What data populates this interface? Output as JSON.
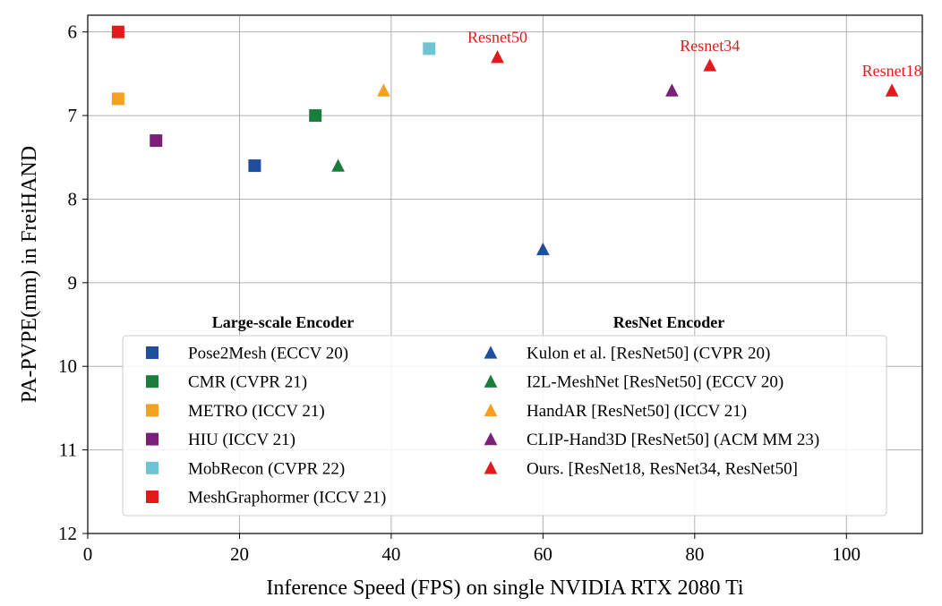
{
  "chart_data": {
    "type": "scatter",
    "xlabel": "Inference Speed (FPS) on single NVIDIA RTX 2080 Ti",
    "ylabel": "PA-PVPE(mm) in FreiHAND",
    "xlim": [
      0,
      110
    ],
    "ylim": [
      12,
      5.8
    ],
    "y_inverted": true,
    "grid": true,
    "x_ticks": [
      0,
      20,
      40,
      60,
      80,
      100
    ],
    "y_ticks": [
      6,
      7,
      8,
      9,
      10,
      11,
      12
    ],
    "legend_groups": [
      {
        "title": "Large-scale Encoder",
        "marker": "square",
        "series": [
          {
            "name": "Pose2Mesh (ECCV 20)",
            "color": "#1f4e9e",
            "points": [
              [
                22,
                7.6
              ]
            ]
          },
          {
            "name": "CMR (CVPR 21)",
            "color": "#1b7d3c",
            "points": [
              [
                30,
                7.0
              ]
            ]
          },
          {
            "name": "METRO (ICCV 21)",
            "color": "#f5a01e",
            "points": [
              [
                4,
                6.8
              ]
            ]
          },
          {
            "name": "HIU (ICCV 21)",
            "color": "#7a1f7a",
            "points": [
              [
                9,
                7.3
              ]
            ]
          },
          {
            "name": "MobRecon (CVPR 22)",
            "color": "#6ec3d4",
            "points": [
              [
                45,
                6.2
              ]
            ]
          },
          {
            "name": "MeshGraphormer (ICCV 21)",
            "color": "#e31a1c",
            "points": [
              [
                4,
                6.0
              ]
            ]
          }
        ]
      },
      {
        "title": "ResNet Encoder",
        "marker": "triangle",
        "series": [
          {
            "name": "Kulon et al. [ResNet50] (CVPR 20)",
            "color": "#1f4e9e",
            "points": [
              [
                60,
                8.6
              ]
            ]
          },
          {
            "name": "I2L-MeshNet [ResNet50] (ECCV 20)",
            "color": "#1b7d3c",
            "points": [
              [
                33,
                7.6
              ]
            ]
          },
          {
            "name": "HandAR [ResNet50] (ICCV 21)",
            "color": "#f5a01e",
            "points": [
              [
                39,
                6.7
              ]
            ]
          },
          {
            "name": "CLIP-Hand3D [ResNet50] (ACM MM 23)",
            "color": "#7a1f7a",
            "points": [
              [
                77,
                6.7
              ]
            ]
          },
          {
            "name": "Ours. [ResNet18, ResNet34, ResNet50]",
            "color": "#e31a1c",
            "points": [
              [
                54,
                6.3
              ],
              [
                82,
                6.4
              ],
              [
                106,
                6.7
              ]
            ]
          }
        ]
      }
    ],
    "annotations": [
      {
        "text": "Resnet50",
        "x": 54,
        "y": 6.3
      },
      {
        "text": "Resnet34",
        "x": 82,
        "y": 6.4
      },
      {
        "text": "Resnet18",
        "x": 106,
        "y": 6.7
      }
    ],
    "legend_placement": "lower-center"
  }
}
